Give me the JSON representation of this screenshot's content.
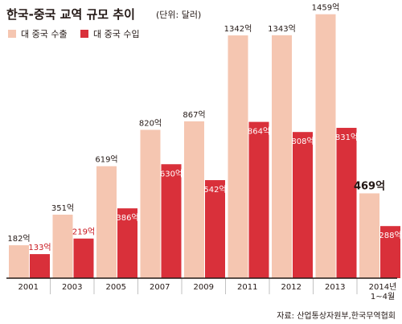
{
  "chart_data": {
    "type": "bar",
    "title": "한국-중국 교역 규모 추이",
    "unit_note": "(단위: 달러)",
    "categories": [
      "2001",
      "2003",
      "2005",
      "2007",
      "2009",
      "2011",
      "2012",
      "2013",
      "2014년 1~4월"
    ],
    "category_lines": [
      [
        "2001"
      ],
      [
        "2003"
      ],
      [
        "2005"
      ],
      [
        "2007"
      ],
      [
        "2009"
      ],
      [
        "2011"
      ],
      [
        "2012"
      ],
      [
        "2013"
      ],
      [
        "2014년",
        "1~4월"
      ]
    ],
    "series": [
      {
        "name": "대 중국 수출",
        "color": "#f5c6b1",
        "values": [
          182,
          351,
          619,
          820,
          867,
          1342,
          1343,
          1459,
          469
        ],
        "labels": [
          "182억",
          "351억",
          "619억",
          "820억",
          "867억",
          "1342억",
          "1343억",
          "1459억",
          "469억"
        ]
      },
      {
        "name": "대 중국 수입",
        "color": "#d9303a",
        "values": [
          133,
          219,
          386,
          630,
          542,
          864,
          808,
          831,
          288
        ],
        "labels": [
          "133억",
          "219억",
          "386억",
          "630억",
          "542억",
          "864억",
          "808억",
          "831억",
          "288억"
        ]
      }
    ],
    "highlight_index": 8,
    "highlight_label_color": "#c8161d",
    "ylim": [
      0,
      1500
    ],
    "grid": false,
    "legend": "top-left"
  },
  "source": "자료: 산업통상자원부,한국무역협회",
  "colors": {
    "text": "#231815",
    "import_label": "#c8161d",
    "baseline": "#231815",
    "divider": "#999999"
  }
}
